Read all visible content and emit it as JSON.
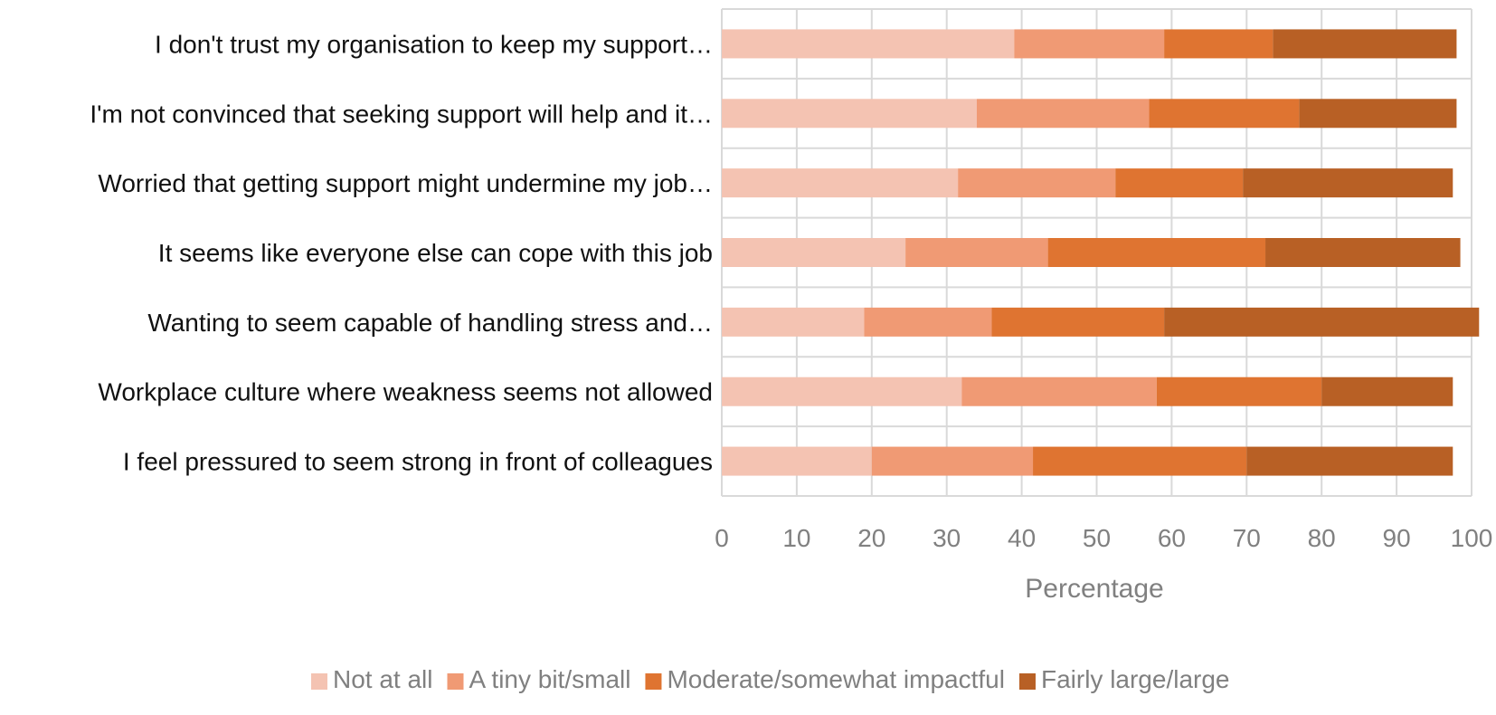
{
  "chart_data": {
    "type": "bar",
    "orientation": "horizontal",
    "stacked": true,
    "categories": [
      "I don't trust my organisation to keep my support…",
      "I'm not convinced that seeking support will help and it…",
      "Worried that getting support might undermine my job…",
      "It seems like everyone else can cope with this job",
      "Wanting to seem capable of handling stress and…",
      "Workplace culture where weakness seems not allowed",
      "I feel pressured to seem strong in front of colleagues"
    ],
    "series": [
      {
        "name": "Not at all",
        "color": "#F4C3B2",
        "values": [
          39,
          34,
          31.5,
          24.5,
          19,
          32,
          20
        ]
      },
      {
        "name": "A tiny bit/small",
        "color": "#F09A74",
        "values": [
          20,
          23,
          21,
          19,
          17,
          26,
          21.5
        ]
      },
      {
        "name": "Moderate/somewhat impactful",
        "color": "#DF7431",
        "values": [
          14.5,
          20,
          17,
          29,
          23,
          22,
          28.5
        ]
      },
      {
        "name": "Fairly large/large",
        "color": "#B86025",
        "values": [
          24.5,
          21,
          28,
          26,
          42,
          17.5,
          27.5
        ]
      }
    ],
    "title": "",
    "xlabel": "Percentage",
    "ylabel": "",
    "xlim": [
      0,
      100
    ],
    "xticks": [
      "0",
      "10",
      "20",
      "30",
      "40",
      "50",
      "60",
      "70",
      "80",
      "90",
      "100"
    ],
    "grid": true,
    "legend_position": "bottom"
  }
}
